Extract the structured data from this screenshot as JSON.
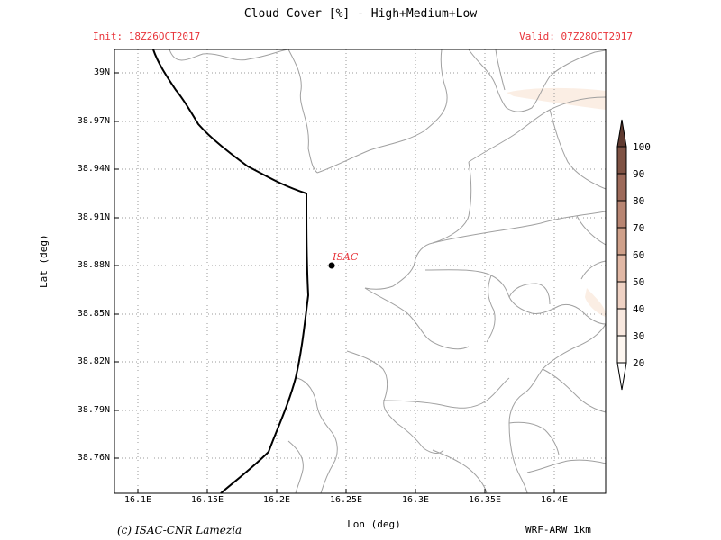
{
  "header": {
    "title": "Cloud Cover [%] - High+Medium+Low",
    "init": "Init: 18Z26OCT2017",
    "valid": "Valid: 07Z28OCT2017"
  },
  "axes": {
    "xlabel": "Lon (deg)",
    "ylabel": "Lat (deg)",
    "x_ticks": [
      "16.1E",
      "16.15E",
      "16.2E",
      "16.25E",
      "16.3E",
      "16.35E",
      "16.4E"
    ],
    "y_ticks": [
      "39N",
      "38.97N",
      "38.94N",
      "38.91N",
      "38.88N",
      "38.85N",
      "38.82N",
      "38.79N",
      "38.76N"
    ]
  },
  "station": {
    "label": "ISAC"
  },
  "colorbar": {
    "levels": [
      "20",
      "30",
      "40",
      "50",
      "60",
      "70",
      "80",
      "90",
      "100"
    ],
    "colors": [
      "#fdf6f0",
      "#f8e8df",
      "#efd2c4",
      "#e1b8a5",
      "#cfa08a",
      "#b88572",
      "#9d6a5a",
      "#7f5244",
      "#5f3a30"
    ]
  },
  "footer": {
    "credit": "(c) ISAC-CNR Lamezia",
    "model": "WRF-ARW 1km"
  },
  "colors": {
    "accent_text": "#e8343a",
    "coastline": "#000000",
    "admin_boundaries": "#a0a0a0",
    "cloud_patch": "#fbeee4"
  }
}
